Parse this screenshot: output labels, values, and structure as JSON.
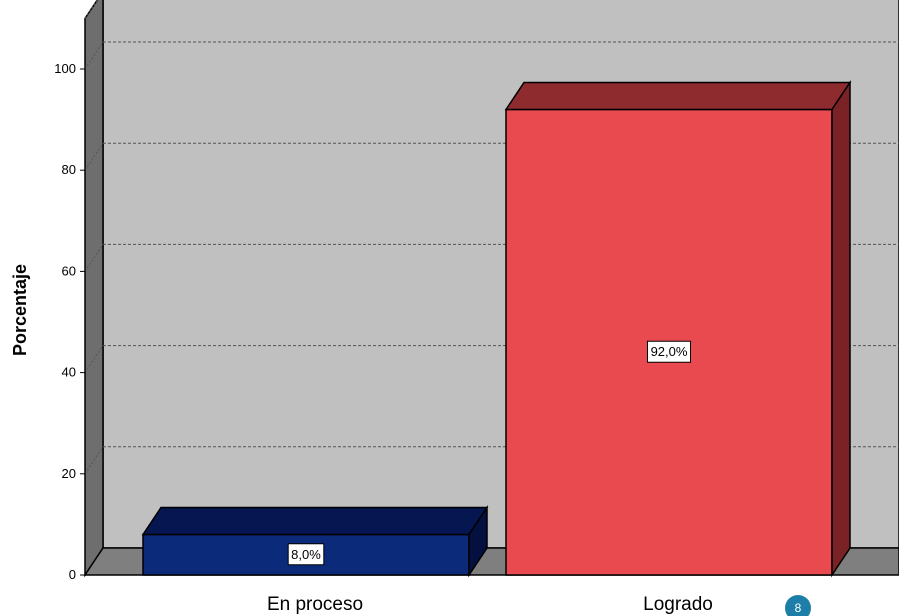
{
  "chart_data": {
    "type": "bar",
    "style": "3d",
    "categories": [
      "En proceso",
      "Logrado"
    ],
    "values": [
      8.0,
      92.0
    ],
    "data_labels": [
      "8,0%",
      "92,0%"
    ],
    "ylabel": "Porcentaje",
    "xlabel": "",
    "ylim": [
      0,
      100
    ],
    "yticks": [
      0,
      20,
      40,
      60,
      80,
      100
    ],
    "grid": true,
    "colors": {
      "En proceso": {
        "front": "#0b2a7a",
        "top": "#051650",
        "side": "#031040"
      },
      "Logrado": {
        "front": "#e84a4f",
        "top": "#8e2b2f",
        "side": "#7a2226"
      },
      "wall": "#c0c0c0",
      "floor_side": "#7f7f7f",
      "grid": "#555555"
    }
  },
  "badge": {
    "text": "8",
    "color": "#1d7ea8"
  }
}
